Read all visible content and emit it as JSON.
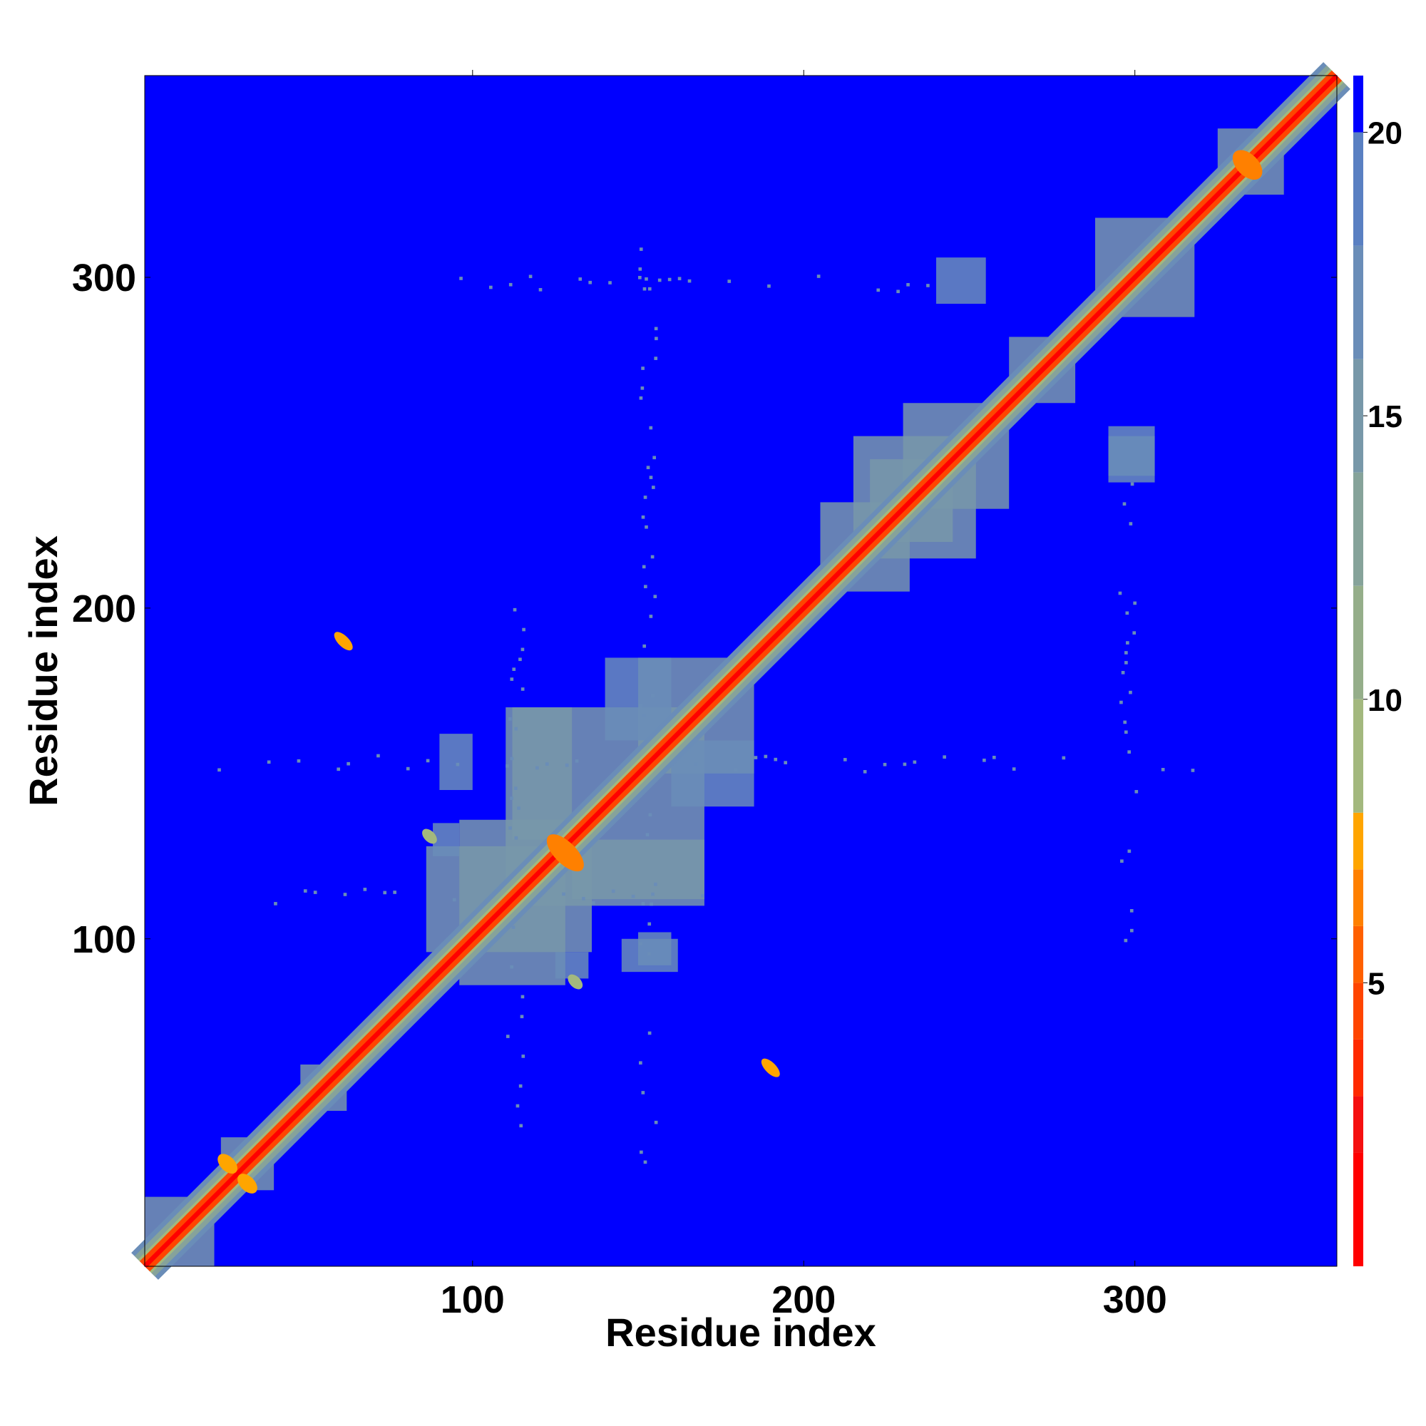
{
  "chart_data": {
    "type": "heatmap",
    "title": "",
    "xlabel": "Residue index",
    "ylabel": "Residue index",
    "xlim": [
      1,
      361
    ],
    "ylim": [
      1,
      361
    ],
    "x_ticks": [
      100,
      200,
      300
    ],
    "y_ticks": [
      100,
      200,
      300
    ],
    "tick_labels": [
      "100",
      "200",
      "300"
    ],
    "colorbar": {
      "range": [
        0,
        21
      ],
      "ticks": [
        5,
        10,
        15,
        20
      ],
      "tick_labels": [
        "5",
        "10",
        "15",
        "20"
      ],
      "colors": [
        {
          "from": 0,
          "to": 2,
          "color": "#ff0000"
        },
        {
          "from": 2,
          "to": 3,
          "color": "#f51010"
        },
        {
          "from": 3,
          "to": 4,
          "color": "#ff2a00"
        },
        {
          "from": 4,
          "to": 5,
          "color": "#ff4500"
        },
        {
          "from": 5,
          "to": 6,
          "color": "#ff6000"
        },
        {
          "from": 6,
          "to": 7,
          "color": "#ff8000"
        },
        {
          "from": 7,
          "to": 8,
          "color": "#ffa500"
        },
        {
          "from": 8,
          "to": 10,
          "color": "#a3b87e"
        },
        {
          "from": 10,
          "to": 12,
          "color": "#95ae8a"
        },
        {
          "from": 12,
          "to": 14,
          "color": "#86a39a"
        },
        {
          "from": 14,
          "to": 16,
          "color": "#7898a9"
        },
        {
          "from": 16,
          "to": 18,
          "color": "#6a8db8"
        },
        {
          "from": 18,
          "to": 20,
          "color": "#5a80c2"
        },
        {
          "from": 20,
          "to": 21,
          "color": "#0000ff"
        }
      ]
    },
    "background_value": 21,
    "diagonal_profile": [
      {
        "offset": 0,
        "value": 1
      },
      {
        "offset": 2,
        "value": 4
      },
      {
        "offset": 3,
        "value": 8
      },
      {
        "offset": 5,
        "value": 12
      },
      {
        "offset": 7,
        "value": 17
      }
    ],
    "regions": [
      {
        "x": [
          1,
          22
        ],
        "y": [
          1,
          22
        ],
        "value": 15
      },
      {
        "x": [
          24,
          40
        ],
        "y": [
          24,
          40
        ],
        "value": 14
      },
      {
        "x": [
          48,
          62
        ],
        "y": [
          48,
          62
        ],
        "value": 14
      },
      {
        "x": [
          86,
          136
        ],
        "y": [
          96,
          128
        ],
        "value": 15
      },
      {
        "x": [
          96,
          128
        ],
        "y": [
          86,
          136
        ],
        "value": 15
      },
      {
        "x": [
          110,
          170
        ],
        "y": [
          110,
          170
        ],
        "value": 14
      },
      {
        "x": [
          130,
          170
        ],
        "y": [
          112,
          130
        ],
        "value": 15
      },
      {
        "x": [
          112,
          130
        ],
        "y": [
          130,
          170
        ],
        "value": 15
      },
      {
        "x": [
          150,
          185
        ],
        "y": [
          150,
          185
        ],
        "value": 15
      },
      {
        "x": [
          160,
          185
        ],
        "y": [
          140,
          160
        ],
        "value": 16
      },
      {
        "x": [
          140,
          160
        ],
        "y": [
          160,
          185
        ],
        "value": 16
      },
      {
        "x": [
          205,
          232
        ],
        "y": [
          205,
          232
        ],
        "value": 14
      },
      {
        "x": [
          220,
          252
        ],
        "y": [
          215,
          245
        ],
        "value": 14
      },
      {
        "x": [
          215,
          245
        ],
        "y": [
          220,
          252
        ],
        "value": 15
      },
      {
        "x": [
          230,
          262
        ],
        "y": [
          230,
          262
        ],
        "value": 15
      },
      {
        "x": [
          262,
          282
        ],
        "y": [
          262,
          282
        ],
        "value": 14
      },
      {
        "x": [
          288,
          318
        ],
        "y": [
          288,
          318
        ],
        "value": 14
      },
      {
        "x": [
          240,
          255
        ],
        "y": [
          292,
          306
        ],
        "value": 16
      },
      {
        "x": [
          292,
          306
        ],
        "y": [
          240,
          255
        ],
        "value": 16
      },
      {
        "x": [
          292,
          306
        ],
        "y": [
          238,
          252
        ],
        "value": 16
      },
      {
        "x": [
          90,
          100
        ],
        "y": [
          145,
          162
        ],
        "value": 17
      },
      {
        "x": [
          145,
          162
        ],
        "y": [
          90,
          100
        ],
        "value": 17
      },
      {
        "x": [
          150,
          160
        ],
        "y": [
          92,
          102
        ],
        "value": 17
      },
      {
        "x": [
          125,
          135
        ],
        "y": [
          88,
          96
        ],
        "value": 17
      },
      {
        "x": [
          88,
          96
        ],
        "y": [
          125,
          135
        ],
        "value": 17
      },
      {
        "x": [
          325,
          345
        ],
        "y": [
          325,
          345
        ],
        "value": 14
      }
    ],
    "contacts": [
      {
        "x": [
          58,
          64
        ],
        "y": [
          186,
          194
        ],
        "value": 7
      },
      {
        "x": [
          186,
          194
        ],
        "y": [
          58,
          64
        ],
        "value": 7
      },
      {
        "x": [
          22,
          30
        ],
        "y": [
          28,
          36
        ],
        "value": 7
      },
      {
        "x": [
          28,
          36
        ],
        "y": [
          22,
          30
        ],
        "value": 7
      },
      {
        "x": [
          122,
          134
        ],
        "y": [
          118,
          134
        ],
        "value": 6
      },
      {
        "x": [
          328,
          340
        ],
        "y": [
          328,
          340
        ],
        "value": 6
      },
      {
        "x": [
          84,
          90
        ],
        "y": [
          128,
          134
        ],
        "value": 8
      },
      {
        "x": [
          128,
          134
        ],
        "y": [
          84,
          90
        ],
        "value": 8
      }
    ],
    "sparse_bands": [
      {
        "axis": "y",
        "range": [
          150,
          155
        ],
        "span": [
          20,
          320
        ],
        "value": 17
      },
      {
        "axis": "x",
        "range": [
          150,
          155
        ],
        "span": [
          20,
          320
        ],
        "value": 17
      },
      {
        "axis": "y",
        "range": [
          295,
          300
        ],
        "span": [
          90,
          240
        ],
        "value": 17
      },
      {
        "axis": "x",
        "range": [
          295,
          300
        ],
        "span": [
          90,
          240
        ],
        "value": 17
      },
      {
        "axis": "y",
        "range": [
          110,
          115
        ],
        "span": [
          40,
          200
        ],
        "value": 17
      },
      {
        "axis": "x",
        "range": [
          110,
          115
        ],
        "span": [
          40,
          200
        ],
        "value": 17
      }
    ]
  }
}
